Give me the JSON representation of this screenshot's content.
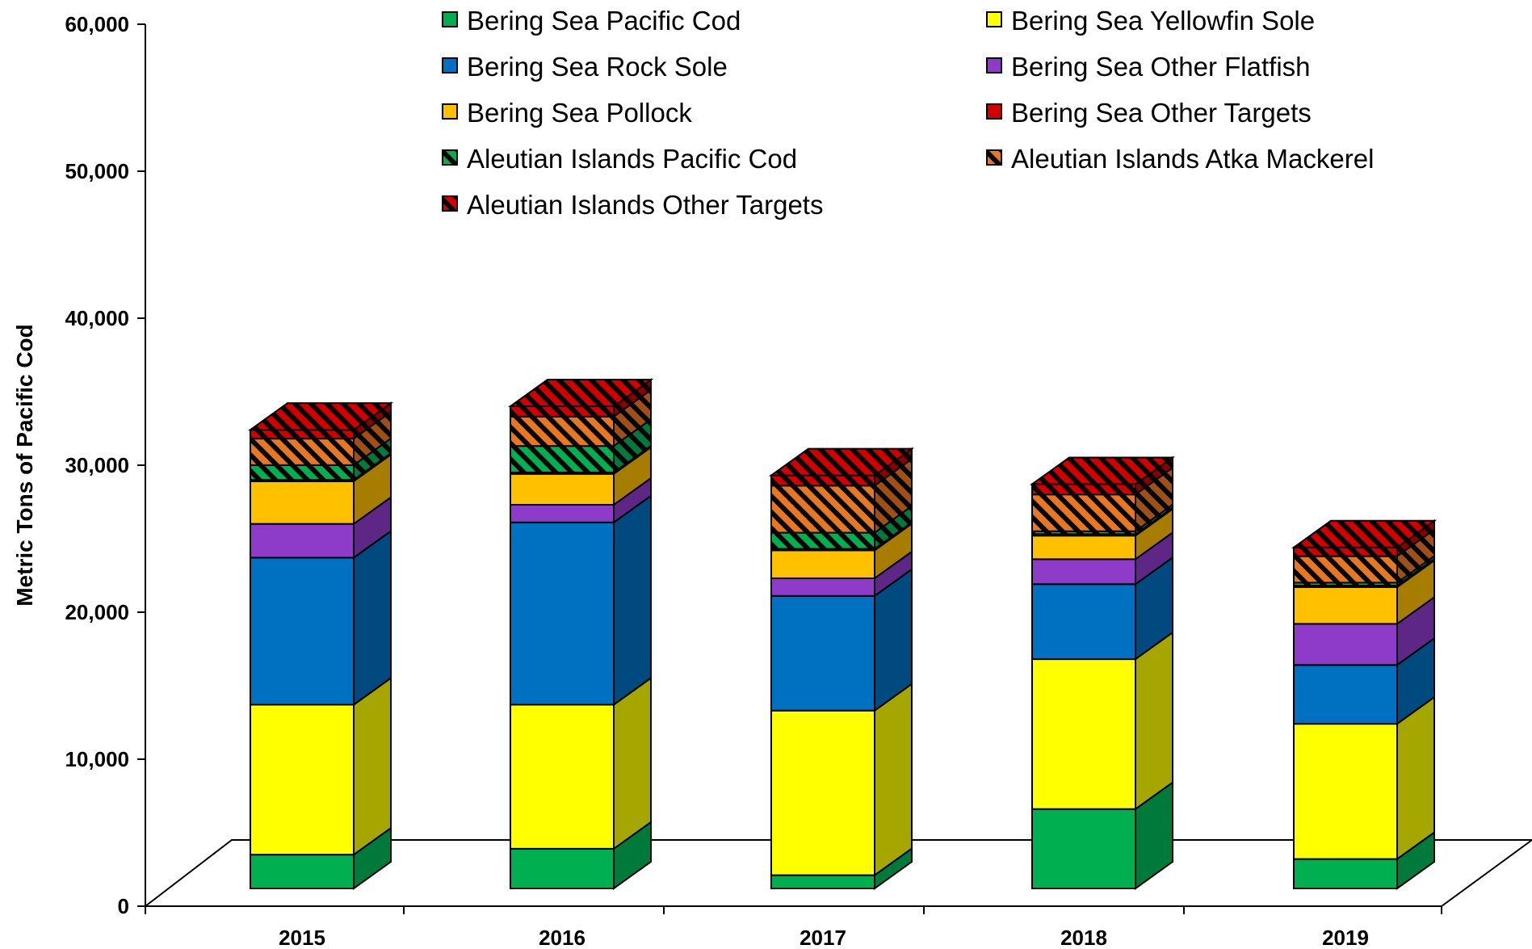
{
  "chart_data": {
    "type": "bar",
    "stacked": true,
    "three_d": true,
    "title": "",
    "xlabel": "",
    "ylabel": "Metric Tons of Pacific Cod",
    "ylim": [
      0,
      60000
    ],
    "yticks": [
      "0",
      "10,000",
      "20,000",
      "30,000",
      "40,000",
      "50,000",
      "60,000"
    ],
    "ytick_values": [
      0,
      10000,
      20000,
      30000,
      40000,
      50000,
      60000
    ],
    "grid": false,
    "legend_position": "top",
    "categories": [
      "2015",
      "2016",
      "2017",
      "2018",
      "2019"
    ],
    "series": [
      {
        "name": "Bering Sea Pacific Cod",
        "color": "#00B050",
        "side_color": "#007A3A",
        "hatched": false,
        "values": [
          2300,
          2700,
          900,
          5400,
          2000
        ]
      },
      {
        "name": "Bering Sea Yellowfin Sole",
        "color": "#FFFF00",
        "side_color": "#A6A600",
        "hatched": false,
        "values": [
          10200,
          9800,
          11200,
          10200,
          9200
        ]
      },
      {
        "name": "Bering Sea Rock Sole",
        "color": "#0070C0",
        "side_color": "#004A80",
        "hatched": false,
        "values": [
          10000,
          12400,
          7800,
          5100,
          4000
        ]
      },
      {
        "name": "Bering Sea Other Flatfish",
        "color": "#8E3BC9",
        "side_color": "#5E2785",
        "hatched": false,
        "values": [
          2300,
          1200,
          1200,
          1700,
          2800
        ]
      },
      {
        "name": "Bering Sea Pollock",
        "color": "#FFC000",
        "side_color": "#A67D00",
        "hatched": false,
        "values": [
          2900,
          2100,
          1900,
          1600,
          2500
        ]
      },
      {
        "name": "Bering Sea Other Targets",
        "color": "#D00000",
        "side_color": "#880000",
        "hatched": false,
        "values": [
          100,
          100,
          100,
          100,
          100
        ]
      },
      {
        "name": "Aleutian Islands Pacific Cod",
        "color": "#00B050",
        "side_color": "#007A3A",
        "hatched": true,
        "values": [
          1000,
          1800,
          1100,
          200,
          200
        ]
      },
      {
        "name": "Aleutian Islands Atka Mackerel",
        "color": "#E87722",
        "side_color": "#A05016",
        "hatched": true,
        "values": [
          1800,
          2000,
          3200,
          2500,
          1800
        ]
      },
      {
        "name": "Aleutian Islands Other Targets",
        "color": "#D00000",
        "side_color": "#880000",
        "hatched": true,
        "values": [
          600,
          700,
          700,
          700,
          600
        ]
      }
    ]
  }
}
